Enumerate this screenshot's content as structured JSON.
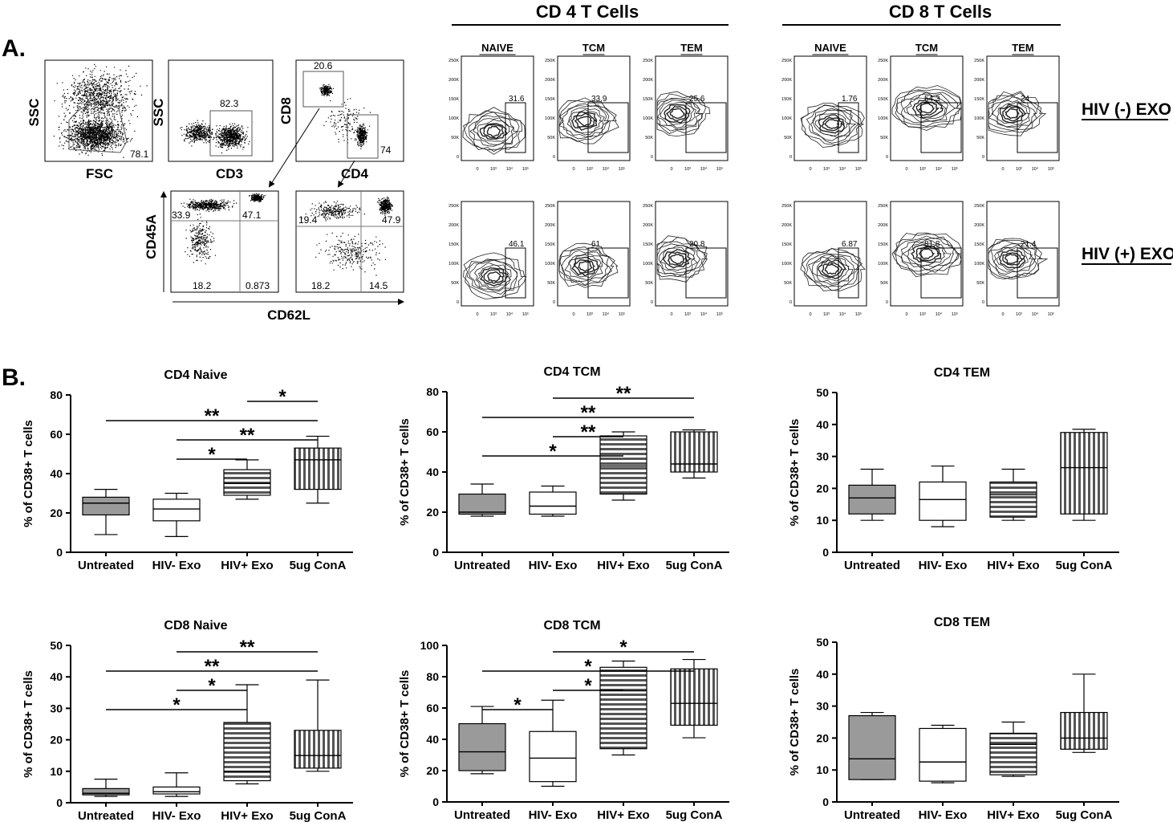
{
  "panel_a": {
    "label": "A.",
    "cd4_header": "CD 4 T Cells",
    "cd8_header": "CD 8 T Cells",
    "subset_labels": [
      "NAIVE",
      "TCM",
      "TEM"
    ],
    "row_labels": [
      "HIV (-) EXO",
      "HIV (+) EXO"
    ],
    "gating": {
      "fsc_ssc": {
        "x_label": "FSC",
        "y_label": "SSC",
        "value": "78.1"
      },
      "cd3_ssc": {
        "x_label": "CD3",
        "y_label": "SSC",
        "value": "82.3"
      },
      "cd4_cd8": {
        "x_label": "CD4",
        "y_label": "CD8",
        "cd8_value": "20.6",
        "cd4_value": "74"
      },
      "cd62l_cd45a_cd8": {
        "y_label": "CD45A",
        "ul": "33.9",
        "ur": "47.1",
        "ll": "18.2",
        "lr": "0.873"
      },
      "cd62l_cd45a_cd4": {
        "ul": "19.4",
        "ur": "47.9",
        "ll": "18.2",
        "lr": "14.5"
      },
      "shared_x_label": "CD62L"
    },
    "y_ticks": [
      "250K",
      "200K",
      "150K",
      "100K",
      "50K",
      "0"
    ],
    "x_ticks": [
      "0",
      "10³",
      "10⁴",
      "10⁵"
    ],
    "contour_values": {
      "cd4_neg": [
        "31.6",
        "33.9",
        "25.6"
      ],
      "cd8_neg": [
        "1.76",
        "54.3",
        "24"
      ],
      "cd4_pos": [
        "46.1",
        "61",
        "20.8"
      ],
      "cd8_pos": [
        "6.87",
        "81.8",
        "21.4"
      ]
    }
  },
  "panel_b": {
    "label": "B."
  },
  "chart_data": [
    {
      "type": "box",
      "title": "CD4 Naive",
      "ylabel": "% of CD38+ T cells",
      "ylim": [
        0,
        80
      ],
      "yticks": [
        0,
        20,
        40,
        60,
        80
      ],
      "categories": [
        "Untreated",
        "HIV- Exo",
        "HIV+ Exo",
        "5ug ConA"
      ],
      "boxes": [
        {
          "min": 9,
          "q1": 19,
          "median": 25,
          "q3": 28,
          "max": 32
        },
        {
          "min": 8,
          "q1": 16,
          "median": 22,
          "q3": 27,
          "max": 30
        },
        {
          "min": 27,
          "q1": 29,
          "median": 35,
          "q3": 42,
          "max": 47
        },
        {
          "min": 25,
          "q1": 32,
          "median": 47,
          "q3": 53,
          "max": 59
        }
      ],
      "significance": [
        {
          "from": 1,
          "to": 2,
          "label": "*"
        },
        {
          "from": 1,
          "to": 3,
          "label": "**"
        },
        {
          "from": 0,
          "to": 3,
          "label": "**"
        },
        {
          "from": 2,
          "to": 3,
          "label": "*"
        }
      ]
    },
    {
      "type": "box",
      "title": "CD4 TCM",
      "ylabel": "% of CD38+ T cells",
      "ylim": [
        0,
        80
      ],
      "yticks": [
        0,
        20,
        40,
        60,
        80
      ],
      "categories": [
        "Untreated",
        "HIV- Exo",
        "HIV+ Exo",
        "5ug ConA"
      ],
      "boxes": [
        {
          "min": 18,
          "q1": 19,
          "median": 20,
          "q3": 29,
          "max": 34
        },
        {
          "min": 18,
          "q1": 19,
          "median": 23,
          "q3": 30,
          "max": 33
        },
        {
          "min": 26,
          "q1": 29,
          "median": 43,
          "q3": 58,
          "max": 60
        },
        {
          "min": 37,
          "q1": 40,
          "median": 44,
          "q3": 60,
          "max": 61
        }
      ],
      "significance": [
        {
          "from": 0,
          "to": 2,
          "label": "*"
        },
        {
          "from": 1,
          "to": 2,
          "label": "**"
        },
        {
          "from": 0,
          "to": 3,
          "label": "**"
        },
        {
          "from": 1,
          "to": 3,
          "label": "**"
        }
      ]
    },
    {
      "type": "box",
      "title": "CD4 TEM",
      "ylabel": "% of CD38+ T cells",
      "ylim": [
        0,
        50
      ],
      "yticks": [
        0,
        10,
        20,
        30,
        40,
        50
      ],
      "categories": [
        "Untreated",
        "HIV- Exo",
        "HIV+ Exo",
        "5ug ConA"
      ],
      "boxes": [
        {
          "min": 10,
          "q1": 12,
          "median": 17,
          "q3": 21,
          "max": 26
        },
        {
          "min": 8,
          "q1": 10,
          "median": 16.5,
          "q3": 22,
          "max": 27
        },
        {
          "min": 10,
          "q1": 11,
          "median": 18,
          "q3": 22,
          "max": 26
        },
        {
          "min": 10,
          "q1": 12,
          "median": 26.5,
          "q3": 37.5,
          "max": 38.5
        }
      ],
      "significance": []
    },
    {
      "type": "box",
      "title": "CD8 Naive",
      "ylabel": "% of CD38+ T cells",
      "ylim": [
        0,
        50
      ],
      "yticks": [
        0,
        10,
        20,
        30,
        40,
        50
      ],
      "categories": [
        "Untreated",
        "HIV- Exo",
        "HIV+ Exo",
        "5ug ConA"
      ],
      "boxes": [
        {
          "min": 2,
          "q1": 2.5,
          "median": 3,
          "q3": 4.5,
          "max": 7.5
        },
        {
          "min": 2,
          "q1": 2.8,
          "median": 3.5,
          "q3": 5,
          "max": 9.5
        },
        {
          "min": 6,
          "q1": 7,
          "median": 10,
          "q3": 25.5,
          "max": 37.5
        },
        {
          "min": 10,
          "q1": 11,
          "median": 15,
          "q3": 23,
          "max": 39
        }
      ],
      "significance": [
        {
          "from": 0,
          "to": 2,
          "label": "*"
        },
        {
          "from": 1,
          "to": 2,
          "label": "*"
        },
        {
          "from": 0,
          "to": 3,
          "label": "**"
        },
        {
          "from": 1,
          "to": 3,
          "label": "**"
        }
      ]
    },
    {
      "type": "box",
      "title": "CD8 TCM",
      "ylabel": "% of CD38+ T cells",
      "ylim": [
        0,
        100
      ],
      "yticks": [
        0,
        20,
        40,
        60,
        80,
        100
      ],
      "categories": [
        "Untreated",
        "HIV- Exo",
        "HIV+ Exo",
        "5ug ConA"
      ],
      "boxes": [
        {
          "min": 18,
          "q1": 20,
          "median": 32,
          "q3": 50,
          "max": 61
        },
        {
          "min": 10,
          "q1": 13,
          "median": 28,
          "q3": 45,
          "max": 65
        },
        {
          "min": 30,
          "q1": 34,
          "median": 71,
          "q3": 86,
          "max": 90
        },
        {
          "min": 41,
          "q1": 49,
          "median": 63,
          "q3": 85,
          "max": 91
        }
      ],
      "significance": [
        {
          "from": 0,
          "to": 1,
          "label": "*"
        },
        {
          "from": 1,
          "to": 2,
          "label": "*"
        },
        {
          "from": 0,
          "to": 3,
          "label": "*"
        },
        {
          "from": 1,
          "to": 3,
          "label": "*"
        }
      ]
    },
    {
      "type": "box",
      "title": "CD8 TEM",
      "ylabel": "% of CD38+ T cells",
      "ylim": [
        0,
        50
      ],
      "yticks": [
        0,
        10,
        20,
        30,
        40,
        50
      ],
      "categories": [
        "Untreated",
        "HIV- Exo",
        "HIV+ Exo",
        "5ug ConA"
      ],
      "boxes": [
        {
          "min": 7,
          "q1": 7,
          "median": 13.5,
          "q3": 27,
          "max": 28
        },
        {
          "min": 6,
          "q1": 6.5,
          "median": 12.5,
          "q3": 23,
          "max": 24
        },
        {
          "min": 8,
          "q1": 8.5,
          "median": 18,
          "q3": 21.5,
          "max": 25
        },
        {
          "min": 15.5,
          "q1": 16.5,
          "median": 20,
          "q3": 28,
          "max": 40
        }
      ],
      "significance": []
    }
  ],
  "box_fills": [
    "grey",
    "white",
    "horizontal-stripes",
    "vertical-stripes"
  ],
  "colors": {
    "grey_fill": "#9a9a9a",
    "stripe_dark": "#555555",
    "stripe_light": "#ffffff",
    "ink": "#000000"
  }
}
